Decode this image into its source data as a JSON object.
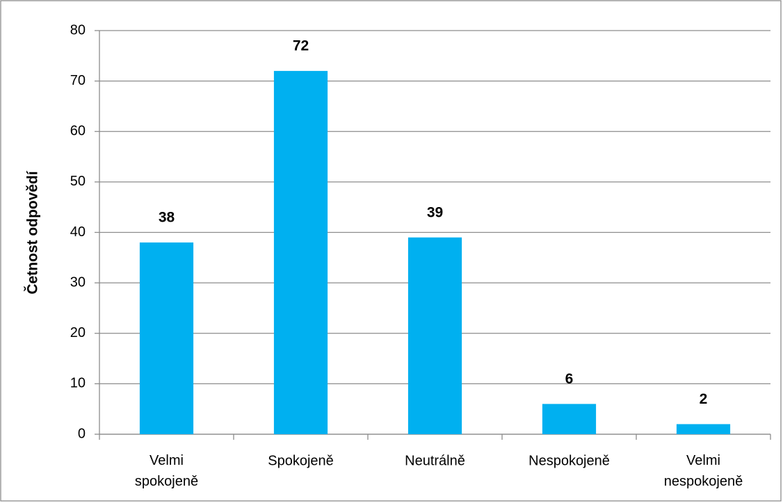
{
  "chart_data": {
    "type": "bar",
    "ylabel": "Četnost odpovědí",
    "categories": [
      "Velmi spokojeně",
      "Spokojeně",
      "Neutrálně",
      "Nespokojeně",
      "Velmi nespokojeně"
    ],
    "values": [
      38,
      72,
      39,
      6,
      2
    ],
    "color": "#00b0f0",
    "ylim": [
      0,
      80
    ],
    "yticks": [
      0,
      10,
      20,
      30,
      40,
      50,
      60,
      70,
      80
    ],
    "grid": true,
    "data_labels": true
  }
}
